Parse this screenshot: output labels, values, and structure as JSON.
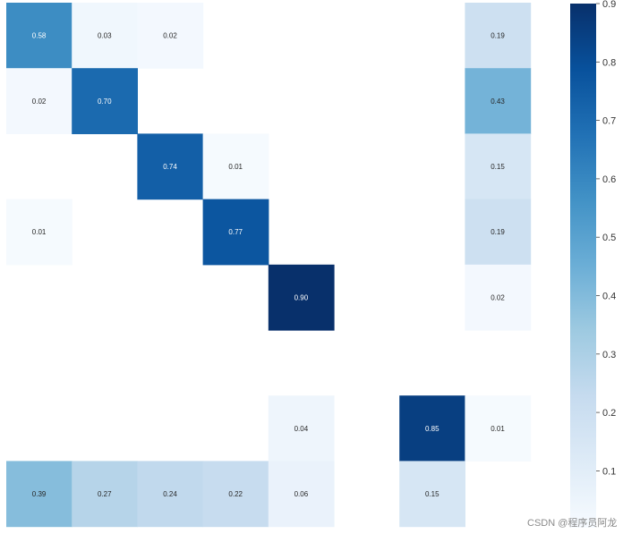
{
  "chart_data": {
    "type": "heatmap",
    "rows": 8,
    "cols": 8,
    "cells": [
      {
        "row": 0,
        "col": 0,
        "value": 0.58,
        "label": "0.58"
      },
      {
        "row": 0,
        "col": 1,
        "value": 0.03,
        "label": "0.03"
      },
      {
        "row": 0,
        "col": 2,
        "value": 0.02,
        "label": "0.02"
      },
      {
        "row": 0,
        "col": 7,
        "value": 0.19,
        "label": "0.19"
      },
      {
        "row": 1,
        "col": 0,
        "value": 0.02,
        "label": "0.02"
      },
      {
        "row": 1,
        "col": 1,
        "value": 0.7,
        "label": "0.70"
      },
      {
        "row": 1,
        "col": 7,
        "value": 0.43,
        "label": "0.43"
      },
      {
        "row": 2,
        "col": 2,
        "value": 0.74,
        "label": "0.74"
      },
      {
        "row": 2,
        "col": 3,
        "value": 0.01,
        "label": "0.01"
      },
      {
        "row": 2,
        "col": 7,
        "value": 0.15,
        "label": "0.15"
      },
      {
        "row": 3,
        "col": 0,
        "value": 0.01,
        "label": "0.01"
      },
      {
        "row": 3,
        "col": 3,
        "value": 0.77,
        "label": "0.77"
      },
      {
        "row": 3,
        "col": 7,
        "value": 0.19,
        "label": "0.19"
      },
      {
        "row": 4,
        "col": 4,
        "value": 0.9,
        "label": "0.90"
      },
      {
        "row": 4,
        "col": 7,
        "value": 0.02,
        "label": "0.02"
      },
      {
        "row": 6,
        "col": 4,
        "value": 0.04,
        "label": "0.04"
      },
      {
        "row": 6,
        "col": 6,
        "value": 0.85,
        "label": "0.85"
      },
      {
        "row": 6,
        "col": 7,
        "value": 0.01,
        "label": "0.01"
      },
      {
        "row": 7,
        "col": 0,
        "value": 0.39,
        "label": "0.39"
      },
      {
        "row": 7,
        "col": 1,
        "value": 0.27,
        "label": "0.27"
      },
      {
        "row": 7,
        "col": 2,
        "value": 0.24,
        "label": "0.24"
      },
      {
        "row": 7,
        "col": 3,
        "value": 0.22,
        "label": "0.22"
      },
      {
        "row": 7,
        "col": 4,
        "value": 0.06,
        "label": "0.06"
      },
      {
        "row": 7,
        "col": 6,
        "value": 0.15,
        "label": "0.15"
      }
    ],
    "blank_when_zero": true,
    "colormap": "Blues",
    "colormap_stops": [
      "#f7fbff",
      "#deebf7",
      "#c6dbef",
      "#9ecae1",
      "#6baed6",
      "#4292c6",
      "#2171b5",
      "#08519c",
      "#08306b"
    ],
    "vmin": 0,
    "vmax": 0.9,
    "colorbar": {
      "position": "right",
      "ticks": [
        "0.1",
        "0.2",
        "0.3",
        "0.4",
        "0.5",
        "0.6",
        "0.7",
        "0.8",
        "0.9"
      ]
    },
    "title": "",
    "xlabel": "",
    "ylabel": ""
  },
  "watermark": "CSDN @程序员阿龙"
}
